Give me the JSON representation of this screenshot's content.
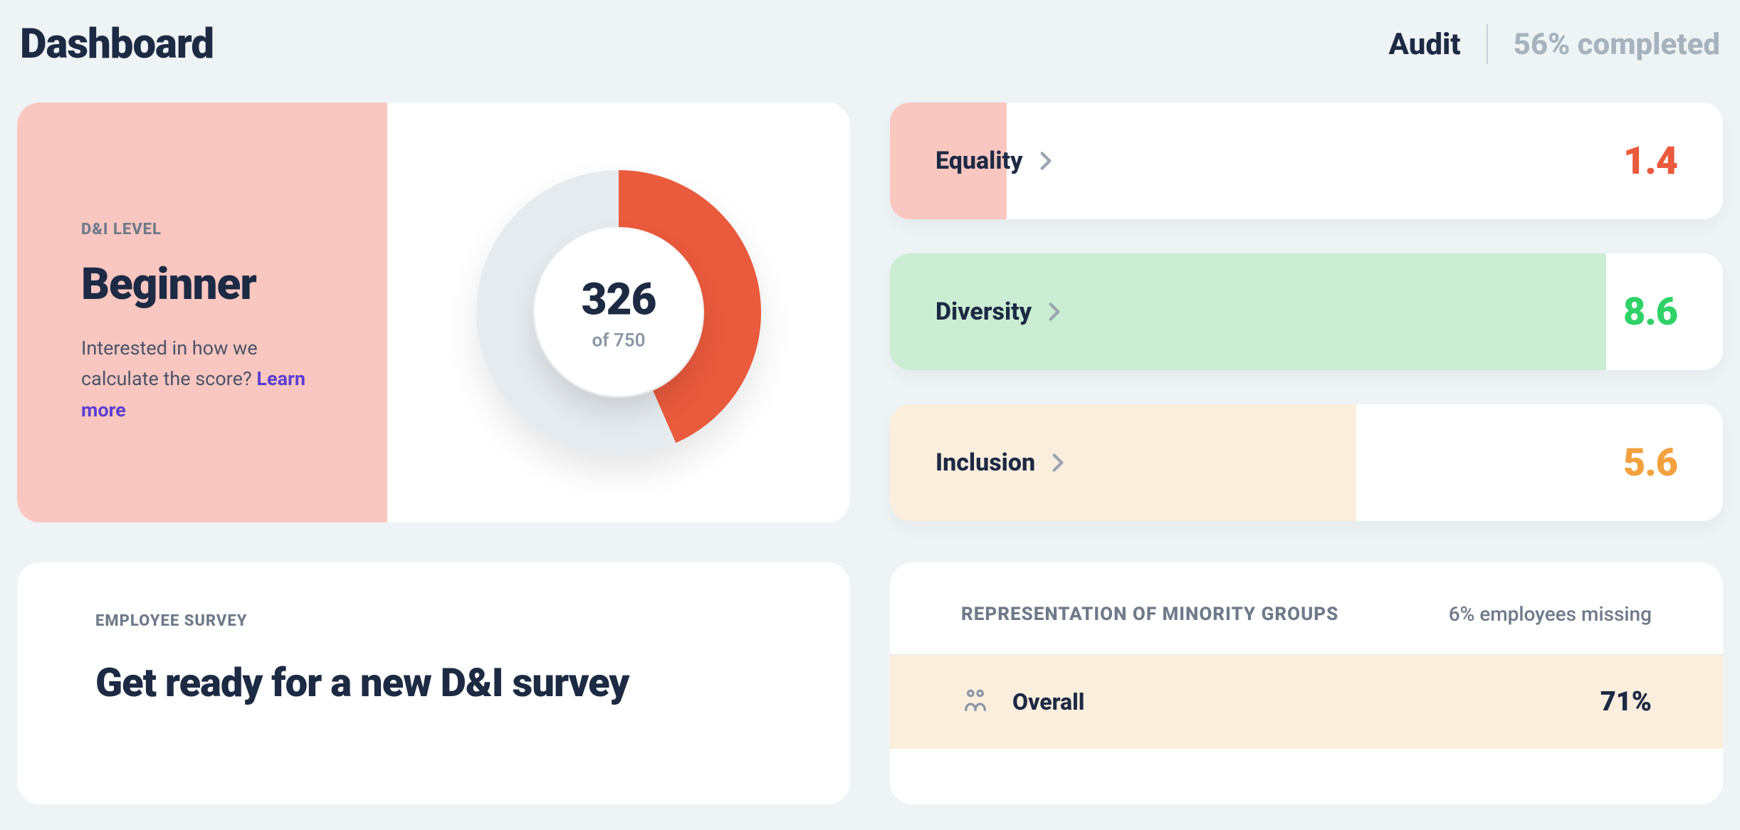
{
  "header": {
    "title": "Dashboard",
    "audit_label": "Audit",
    "completed_label": "56% completed"
  },
  "di_level": {
    "section_label": "D&I LEVEL",
    "level": "Beginner",
    "description": "Interested in how we calculate the score? ",
    "learn_more": "Learn more",
    "left_bg": "#f9c6c0",
    "donut": {
      "value": "326",
      "of_text": "of 750",
      "percent": 0.434,
      "ring_bg": "#e6ebef",
      "ring_fill": "#ea5a3d",
      "ring_width": 40
    }
  },
  "metrics": [
    {
      "name": "Equality",
      "value": "1.4",
      "fill_color": "#f9c6c0",
      "value_color": "#ea5a3d",
      "fill_pct": 14
    },
    {
      "name": "Diversity",
      "value": "8.6",
      "fill_color": "#cbedd3",
      "value_color": "#2fd266",
      "fill_pct": 86
    },
    {
      "name": "Inclusion",
      "value": "5.6",
      "fill_color": "#fceedd",
      "value_color": "#f1a13d",
      "fill_pct": 56
    }
  ],
  "survey": {
    "section_label": "EMPLOYEE SURVEY",
    "title": "Get ready for a new D&I survey"
  },
  "representation": {
    "title": "REPRESENTATION OF MINORITY GROUPS",
    "subtitle": "6% employees missing",
    "rows": [
      {
        "icon": "people",
        "name": "Overall",
        "value": "71%",
        "bg": "#fceedd"
      }
    ]
  }
}
